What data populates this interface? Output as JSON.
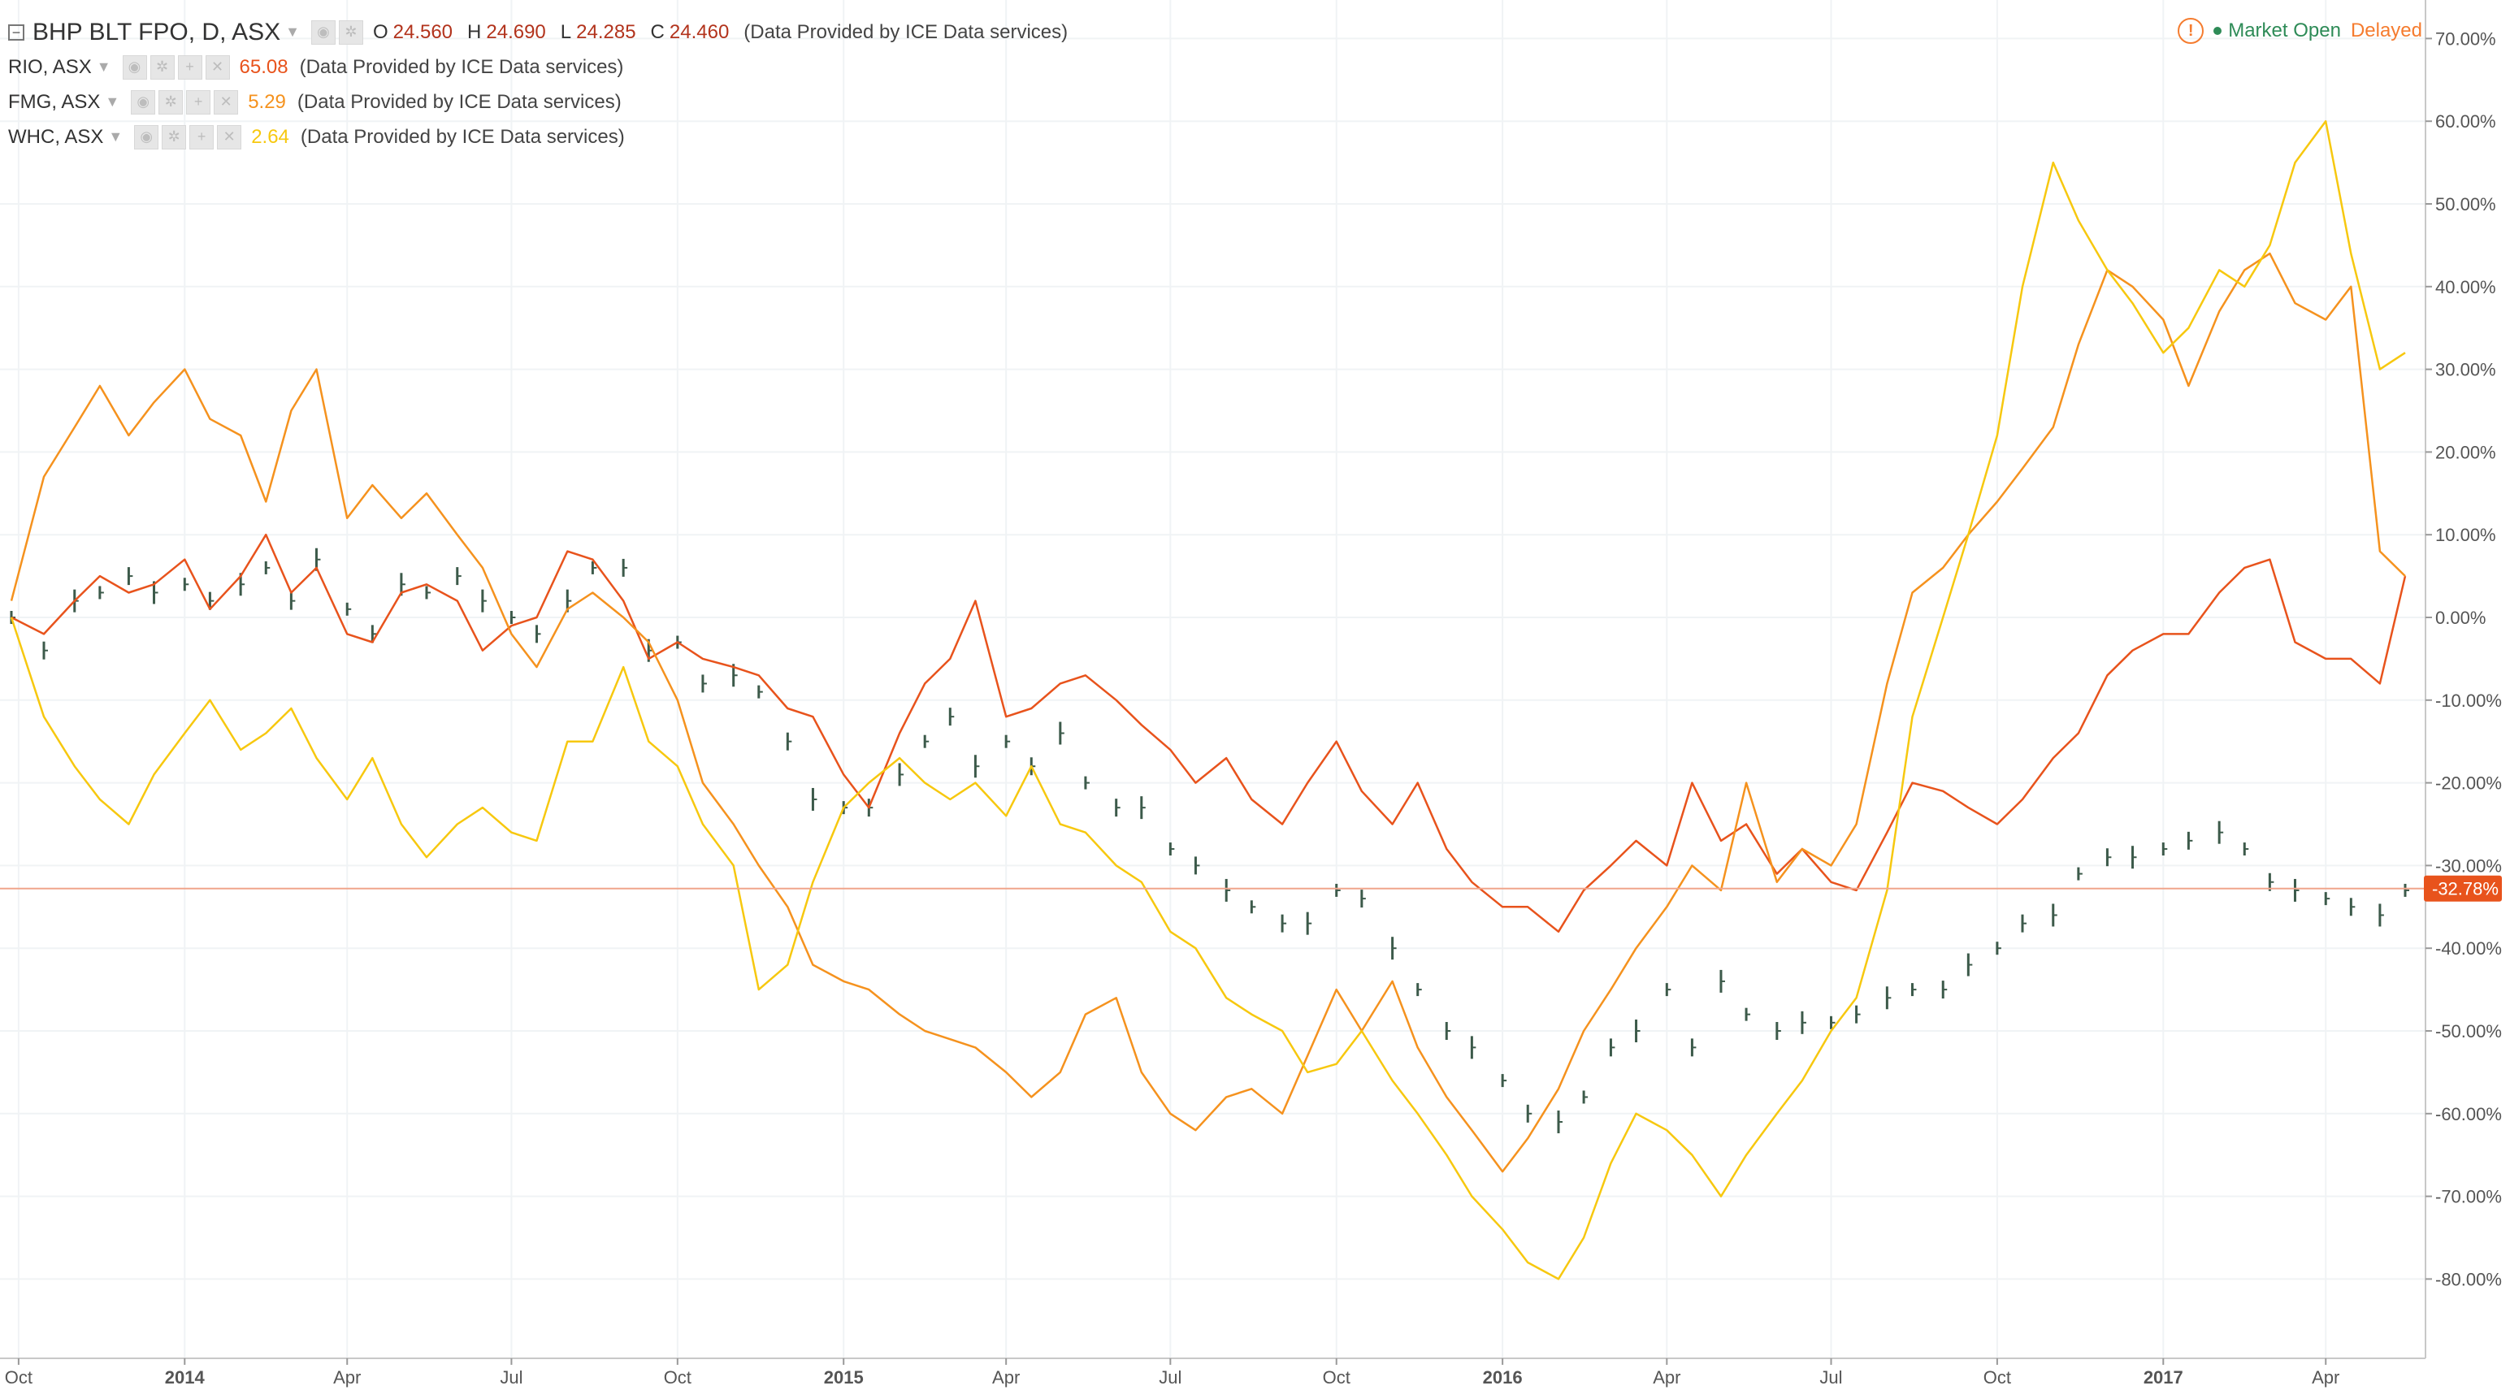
{
  "header": {
    "main_symbol": "BHP BLT FPO, D, ASX",
    "collapse_icon": "minus-box-icon",
    "ohlc": [
      {
        "key": "O",
        "value": "24.560"
      },
      {
        "key": "H",
        "value": "24.690"
      },
      {
        "key": "L",
        "value": "24.285"
      },
      {
        "key": "C",
        "value": "24.460"
      }
    ],
    "source": "(Data Provided by ICE Data services)"
  },
  "comparisons": [
    {
      "symbol": "RIO, ASX",
      "value": "65.08",
      "color": "#e8531c",
      "source": "(Data Provided by ICE Data services)"
    },
    {
      "symbol": "FMG, ASX",
      "value": "5.29",
      "color": "#f5921e",
      "source": "(Data Provided by ICE Data services)"
    },
    {
      "symbol": "WHC, ASX",
      "value": "2.64",
      "color": "#f7c80f",
      "source": "(Data Provided by ICE Data services)"
    }
  ],
  "status": {
    "market": "Market Open",
    "delayed": "Delayed",
    "warn_icon": "warning-circle-icon"
  },
  "chart_data": {
    "type": "line",
    "x": [
      "2013-09-27",
      "2013-10-15",
      "2013-11-01",
      "2013-11-15",
      "2013-12-01",
      "2013-12-15",
      "2014-01-01",
      "2014-01-15",
      "2014-02-01",
      "2014-02-15",
      "2014-03-01",
      "2014-03-15",
      "2014-04-01",
      "2014-04-15",
      "2014-05-01",
      "2014-05-15",
      "2014-06-01",
      "2014-06-15",
      "2014-07-01",
      "2014-07-15",
      "2014-08-01",
      "2014-08-15",
      "2014-09-01",
      "2014-09-15",
      "2014-10-01",
      "2014-10-15",
      "2014-11-01",
      "2014-11-15",
      "2014-12-01",
      "2014-12-15",
      "2015-01-01",
      "2015-01-15",
      "2015-02-01",
      "2015-02-15",
      "2015-03-01",
      "2015-03-15",
      "2015-04-01",
      "2015-04-15",
      "2015-05-01",
      "2015-05-15",
      "2015-06-01",
      "2015-06-15",
      "2015-07-01",
      "2015-07-15",
      "2015-08-01",
      "2015-08-15",
      "2015-09-01",
      "2015-09-15",
      "2015-10-01",
      "2015-10-15",
      "2015-11-01",
      "2015-11-15",
      "2015-12-01",
      "2015-12-15",
      "2016-01-01",
      "2016-01-15",
      "2016-02-01",
      "2016-02-15",
      "2016-03-01",
      "2016-03-15",
      "2016-04-01",
      "2016-04-15",
      "2016-05-01",
      "2016-05-15",
      "2016-06-01",
      "2016-06-15",
      "2016-07-01",
      "2016-07-15",
      "2016-08-01",
      "2016-08-15",
      "2016-09-01",
      "2016-09-15",
      "2016-10-01",
      "2016-10-15",
      "2016-11-01",
      "2016-11-15",
      "2016-12-01",
      "2016-12-15",
      "2017-01-01",
      "2017-01-15",
      "2017-02-01",
      "2017-02-15",
      "2017-03-01",
      "2017-03-15",
      "2017-04-01",
      "2017-04-15",
      "2017-05-01",
      "2017-05-15"
    ],
    "series": [
      {
        "name": "BHP BLT FPO",
        "color": "#3c5a4a",
        "style": "bars",
        "values": [
          0,
          -4,
          2,
          3,
          5,
          3,
          4,
          2,
          4,
          6,
          2,
          7,
          1,
          -2,
          4,
          3,
          5,
          2,
          0,
          -2,
          2,
          6,
          6,
          -4,
          -3,
          -8,
          -7,
          -9,
          -15,
          -22,
          -23,
          -23,
          -19,
          -15,
          -12,
          -18,
          -15,
          -18,
          -14,
          -20,
          -23,
          -23,
          -28,
          -30,
          -33,
          -35,
          -37,
          -37,
          -33,
          -34,
          -40,
          -45,
          -50,
          -52,
          -56,
          -60,
          -61,
          -58,
          -52,
          -50,
          -45,
          -52,
          -44,
          -48,
          -50,
          -49,
          -49,
          -48,
          -46,
          -45,
          -45,
          -42,
          -40,
          -37,
          -36,
          -31,
          -29,
          -29,
          -28,
          -27,
          -26,
          -28,
          -32,
          -33,
          -34,
          -35,
          -36,
          -33
        ]
      },
      {
        "name": "RIO, ASX",
        "color": "#e8531c",
        "style": "line",
        "values": [
          0,
          -2,
          2,
          5,
          3,
          4,
          7,
          1,
          5,
          10,
          3,
          6,
          -2,
          -3,
          3,
          4,
          2,
          -4,
          -1,
          0,
          8,
          7,
          2,
          -5,
          -3,
          -5,
          -6,
          -7,
          -11,
          -12,
          -19,
          -23,
          -14,
          -8,
          -5,
          2,
          -12,
          -11,
          -8,
          -7,
          -10,
          -13,
          -16,
          -20,
          -17,
          -22,
          -25,
          -20,
          -15,
          -21,
          -25,
          -20,
          -28,
          -32,
          -35,
          -35,
          -38,
          -33,
          -30,
          -27,
          -30,
          -20,
          -27,
          -25,
          -31,
          -28,
          -32,
          -33,
          -26,
          -20,
          -21,
          -23,
          -25,
          -22,
          -17,
          -14,
          -7,
          -4,
          -2,
          -2,
          3,
          6,
          7,
          -3,
          -5,
          -5,
          -8,
          5
        ]
      },
      {
        "name": "FMG, ASX",
        "color": "#f5921e",
        "style": "line",
        "values": [
          2,
          17,
          23,
          28,
          22,
          26,
          30,
          24,
          22,
          14,
          25,
          30,
          12,
          16,
          12,
          15,
          10,
          6,
          -2,
          -6,
          1,
          3,
          0,
          -3,
          -10,
          -20,
          -25,
          -30,
          -35,
          -42,
          -44,
          -45,
          -48,
          -50,
          -51,
          -52,
          -55,
          -58,
          -55,
          -48,
          -46,
          -55,
          -60,
          -62,
          -58,
          -57,
          -60,
          -53,
          -45,
          -50,
          -44,
          -52,
          -58,
          -62,
          -67,
          -63,
          -57,
          -50,
          -45,
          -40,
          -35,
          -30,
          -33,
          -20,
          -32,
          -28,
          -30,
          -25,
          -8,
          3,
          6,
          10,
          14,
          18,
          23,
          33,
          42,
          40,
          36,
          28,
          37,
          42,
          44,
          38,
          36,
          40,
          8,
          5
        ]
      },
      {
        "name": "WHC, ASX",
        "color": "#f7c80f",
        "style": "line",
        "values": [
          0,
          -12,
          -18,
          -22,
          -25,
          -19,
          -14,
          -10,
          -16,
          -14,
          -11,
          -17,
          -22,
          -17,
          -25,
          -29,
          -25,
          -23,
          -26,
          -27,
          -15,
          -15,
          -6,
          -15,
          -18,
          -25,
          -30,
          -45,
          -42,
          -32,
          -23,
          -20,
          -17,
          -20,
          -22,
          -20,
          -24,
          -18,
          -25,
          -26,
          -30,
          -32,
          -38,
          -40,
          -46,
          -48,
          -50,
          -55,
          -54,
          -50,
          -56,
          -60,
          -65,
          -70,
          -74,
          -78,
          -80,
          -75,
          -66,
          -60,
          -62,
          -65,
          -70,
          -65,
          -60,
          -56,
          -50,
          -46,
          -33,
          -12,
          0,
          10,
          22,
          40,
          55,
          48,
          42,
          38,
          32,
          35,
          42,
          40,
          45,
          55,
          60,
          44,
          30,
          32
        ]
      }
    ],
    "y_ticks": [
      "70.00%",
      "60.00%",
      "50.00%",
      "40.00%",
      "30.00%",
      "20.00%",
      "10.00%",
      "0.00%",
      "-10.00%",
      "-20.00%",
      "-30.00%",
      "-40.00%",
      "-50.00%",
      "-60.00%",
      "-70.00%",
      "-80.00%"
    ],
    "x_ticks": [
      "Oct",
      "2014",
      "Apr",
      "Jul",
      "Oct",
      "2015",
      "Apr",
      "Jul",
      "Oct",
      "2016",
      "Apr",
      "Jul",
      "Oct",
      "2017",
      "Apr"
    ],
    "ylim": [
      -90,
      72
    ],
    "current_value_label": "-32.78%",
    "current_value": -32.78,
    "price_line_color": "#f0a58c",
    "label_bg_color": "#e8531c",
    "grid": true
  }
}
